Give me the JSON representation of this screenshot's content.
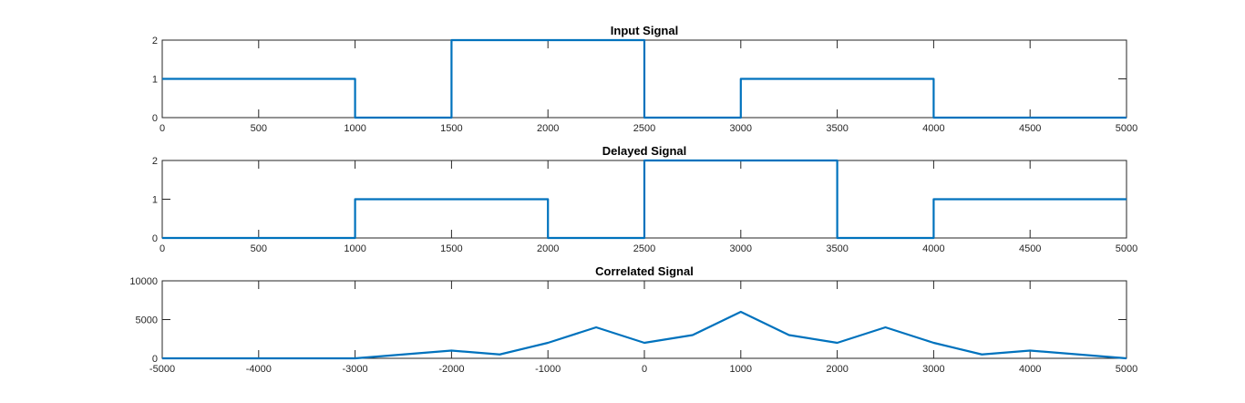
{
  "colors": {
    "series": "#0072bd",
    "axes": "#262626",
    "background": "#ffffff"
  },
  "chart_data": [
    {
      "type": "line",
      "title": "Input Signal",
      "xlabel": "",
      "ylabel": "",
      "xlim": [
        0,
        5000
      ],
      "ylim": [
        0,
        2
      ],
      "grid": false,
      "xticks": [
        0,
        500,
        1000,
        1500,
        2000,
        2500,
        3000,
        3500,
        4000,
        4500,
        5000
      ],
      "yticks": [
        0,
        1,
        2
      ],
      "series": [
        {
          "x": [
            0,
            1000,
            1000,
            1500,
            1500,
            2500,
            2500,
            3000,
            3000,
            4000,
            4000,
            5000
          ],
          "y": [
            1,
            1,
            0,
            0,
            2,
            2,
            0,
            0,
            1,
            1,
            0,
            0
          ]
        }
      ]
    },
    {
      "type": "line",
      "title": "Delayed Signal",
      "xlabel": "",
      "ylabel": "",
      "xlim": [
        0,
        5000
      ],
      "ylim": [
        0,
        2
      ],
      "grid": false,
      "xticks": [
        0,
        500,
        1000,
        1500,
        2000,
        2500,
        3000,
        3500,
        4000,
        4500,
        5000
      ],
      "yticks": [
        0,
        1,
        2
      ],
      "series": [
        {
          "x": [
            0,
            1000,
            1000,
            2000,
            2000,
            2500,
            2500,
            3500,
            3500,
            4000,
            4000,
            5000
          ],
          "y": [
            0,
            0,
            1,
            1,
            0,
            0,
            2,
            2,
            0,
            0,
            1,
            1
          ]
        }
      ]
    },
    {
      "type": "line",
      "title": "Correlated Signal",
      "xlabel": "",
      "ylabel": "",
      "xlim": [
        -5000,
        5000
      ],
      "ylim": [
        0,
        10000
      ],
      "grid": false,
      "xticks": [
        -5000,
        -4000,
        -3000,
        -2000,
        -1000,
        0,
        1000,
        2000,
        3000,
        4000,
        5000
      ],
      "yticks": [
        0,
        5000,
        10000
      ],
      "series": [
        {
          "x": [
            -5000,
            -3000,
            -2000,
            -1500,
            -1000,
            -500,
            0,
            500,
            1000,
            1500,
            2000,
            2500,
            3000,
            3500,
            4000,
            5000
          ],
          "y": [
            0,
            0,
            1000,
            500,
            2000,
            4000,
            2000,
            3000,
            6000,
            3000,
            2000,
            4000,
            2000,
            500,
            1000,
            0
          ]
        }
      ]
    }
  ]
}
